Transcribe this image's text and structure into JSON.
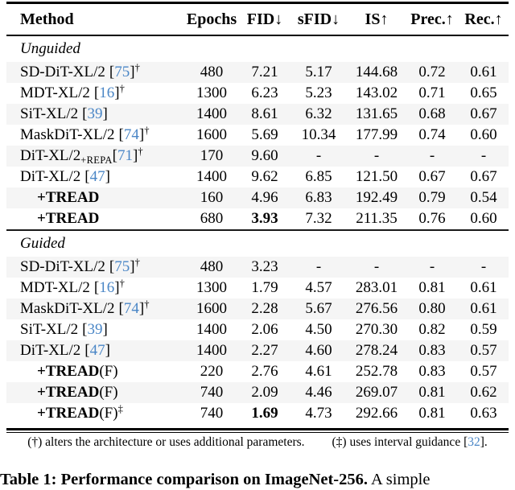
{
  "accent": {
    "citation_blue": "#4a86c6",
    "row_shade": "#f5f5f5"
  },
  "table": {
    "header": {
      "method": "Method",
      "cols": [
        {
          "key": "epochs",
          "label": "Epochs",
          "arrow": ""
        },
        {
          "key": "fid",
          "label": "FID",
          "arrow": "↓"
        },
        {
          "key": "sfid",
          "label": "sFID",
          "arrow": "↓"
        },
        {
          "key": "is",
          "label": "IS",
          "arrow": "↑"
        },
        {
          "key": "prec",
          "label": "Prec.",
          "arrow": "↑"
        },
        {
          "key": "rec",
          "label": "Rec.",
          "arrow": "↑"
        }
      ]
    },
    "sections": [
      {
        "title": "Unguided",
        "rows": [
          {
            "name": "SD-DiT-XL/2",
            "sub": "",
            "suffix": "",
            "cite": "75",
            "cite_space": true,
            "sup": "†",
            "bold": false,
            "indent": false,
            "shaded": true,
            "values": {
              "epochs": "480",
              "fid": "7.21",
              "sfid": "5.17",
              "is": "144.68",
              "prec": "0.72",
              "rec": "0.61"
            },
            "bold_cols": []
          },
          {
            "name": "MDT-XL/2",
            "sub": "",
            "suffix": "",
            "cite": "16",
            "cite_space": true,
            "sup": "†",
            "bold": false,
            "indent": false,
            "shaded": false,
            "values": {
              "epochs": "1300",
              "fid": "6.23",
              "sfid": "5.23",
              "is": "143.02",
              "prec": "0.71",
              "rec": "0.65"
            },
            "bold_cols": []
          },
          {
            "name": "SiT-XL/2",
            "sub": "",
            "suffix": "",
            "cite": "39",
            "cite_space": true,
            "sup": "",
            "bold": false,
            "indent": false,
            "shaded": true,
            "values": {
              "epochs": "1400",
              "fid": "8.61",
              "sfid": "6.32",
              "is": "131.65",
              "prec": "0.68",
              "rec": "0.67"
            },
            "bold_cols": []
          },
          {
            "name": "MaskDiT-XL/2",
            "sub": "",
            "suffix": "",
            "cite": "74",
            "cite_space": true,
            "sup": "†",
            "bold": false,
            "indent": false,
            "shaded": false,
            "values": {
              "epochs": "1600",
              "fid": "5.69",
              "sfid": "10.34",
              "is": "177.99",
              "prec": "0.74",
              "rec": "0.60"
            },
            "bold_cols": []
          },
          {
            "name": "DiT-XL/2",
            "sub": "+REPA",
            "suffix": "",
            "cite": "71",
            "cite_space": false,
            "sup": "†",
            "bold": false,
            "indent": false,
            "shaded": true,
            "values": {
              "epochs": "170",
              "fid": "9.60",
              "sfid": "-",
              "is": "-",
              "prec": "-",
              "rec": "-"
            },
            "bold_cols": []
          },
          {
            "name": "DiT-XL/2",
            "sub": "",
            "suffix": "",
            "cite": "47",
            "cite_space": true,
            "sup": "",
            "bold": false,
            "indent": false,
            "shaded": false,
            "values": {
              "epochs": "1400",
              "fid": "9.62",
              "sfid": "6.85",
              "is": "121.50",
              "prec": "0.67",
              "rec": "0.67"
            },
            "bold_cols": []
          },
          {
            "name": "+TREAD",
            "sub": "",
            "suffix": "",
            "cite": "",
            "cite_space": false,
            "sup": "",
            "bold": true,
            "indent": true,
            "shaded": true,
            "values": {
              "epochs": "160",
              "fid": "4.96",
              "sfid": "6.83",
              "is": "192.49",
              "prec": "0.79",
              "rec": "0.54"
            },
            "bold_cols": []
          },
          {
            "name": "+TREAD",
            "sub": "",
            "suffix": "",
            "cite": "",
            "cite_space": false,
            "sup": "",
            "bold": true,
            "indent": true,
            "shaded": false,
            "values": {
              "epochs": "680",
              "fid": "3.93",
              "sfid": "7.32",
              "is": "211.35",
              "prec": "0.76",
              "rec": "0.60"
            },
            "bold_cols": [
              "fid"
            ]
          }
        ]
      },
      {
        "title": "Guided",
        "rows": [
          {
            "name": "SD-DiT-XL/2",
            "sub": "",
            "suffix": "",
            "cite": "75",
            "cite_space": true,
            "sup": "†",
            "bold": false,
            "indent": false,
            "shaded": true,
            "values": {
              "epochs": "480",
              "fid": "3.23",
              "sfid": "-",
              "is": "-",
              "prec": "-",
              "rec": "-"
            },
            "bold_cols": []
          },
          {
            "name": "MDT-XL/2",
            "sub": "",
            "suffix": "",
            "cite": "16",
            "cite_space": true,
            "sup": "†",
            "bold": false,
            "indent": false,
            "shaded": false,
            "values": {
              "epochs": "1300",
              "fid": "1.79",
              "sfid": "4.57",
              "is": "283.01",
              "prec": "0.81",
              "rec": "0.61"
            },
            "bold_cols": []
          },
          {
            "name": "MaskDiT-XL/2",
            "sub": "",
            "suffix": "",
            "cite": "74",
            "cite_space": true,
            "sup": "†",
            "bold": false,
            "indent": false,
            "shaded": true,
            "values": {
              "epochs": "1600",
              "fid": "2.28",
              "sfid": "5.67",
              "is": "276.56",
              "prec": "0.80",
              "rec": "0.61"
            },
            "bold_cols": []
          },
          {
            "name": "SiT-XL/2",
            "sub": "",
            "suffix": "",
            "cite": "39",
            "cite_space": true,
            "sup": "",
            "bold": false,
            "indent": false,
            "shaded": false,
            "values": {
              "epochs": "1400",
              "fid": "2.06",
              "sfid": "4.50",
              "is": "270.30",
              "prec": "0.82",
              "rec": "0.59"
            },
            "bold_cols": []
          },
          {
            "name": "DiT-XL/2",
            "sub": "",
            "suffix": "",
            "cite": "47",
            "cite_space": true,
            "sup": "",
            "bold": false,
            "indent": false,
            "shaded": true,
            "values": {
              "epochs": "1400",
              "fid": "2.27",
              "sfid": "4.60",
              "is": "278.24",
              "prec": "0.83",
              "rec": "0.57"
            },
            "bold_cols": []
          },
          {
            "name": "+TREAD",
            "sub": "",
            "suffix": "(F)",
            "cite": "",
            "cite_space": false,
            "sup": "",
            "bold": true,
            "indent": true,
            "shaded": false,
            "values": {
              "epochs": "220",
              "fid": "2.76",
              "sfid": "4.61",
              "is": "252.78",
              "prec": "0.83",
              "rec": "0.57"
            },
            "bold_cols": []
          },
          {
            "name": "+TREAD",
            "sub": "",
            "suffix": "(F)",
            "cite": "",
            "cite_space": false,
            "sup": "",
            "bold": true,
            "indent": true,
            "shaded": true,
            "values": {
              "epochs": "740",
              "fid": "2.09",
              "sfid": "4.46",
              "is": "269.07",
              "prec": "0.81",
              "rec": "0.62"
            },
            "bold_cols": []
          },
          {
            "name": "+TREAD",
            "sub": "",
            "suffix": "(F)",
            "cite": "",
            "cite_space": false,
            "sup": "‡",
            "bold": true,
            "indent": true,
            "shaded": false,
            "values": {
              "epochs": "740",
              "fid": "1.69",
              "sfid": "4.73",
              "is": "292.66",
              "prec": "0.81",
              "rec": "0.63"
            },
            "bold_cols": [
              "fid"
            ]
          }
        ]
      }
    ]
  },
  "footnote": {
    "left": "(†) alters the architecture or uses additional parameters.",
    "right_pre": "(‡) uses interval guidance [",
    "right_cite": "32",
    "right_post": "]."
  },
  "caption": {
    "bold": "Table 1: Performance comparison on ImageNet-256.",
    "rest": " A simple"
  }
}
